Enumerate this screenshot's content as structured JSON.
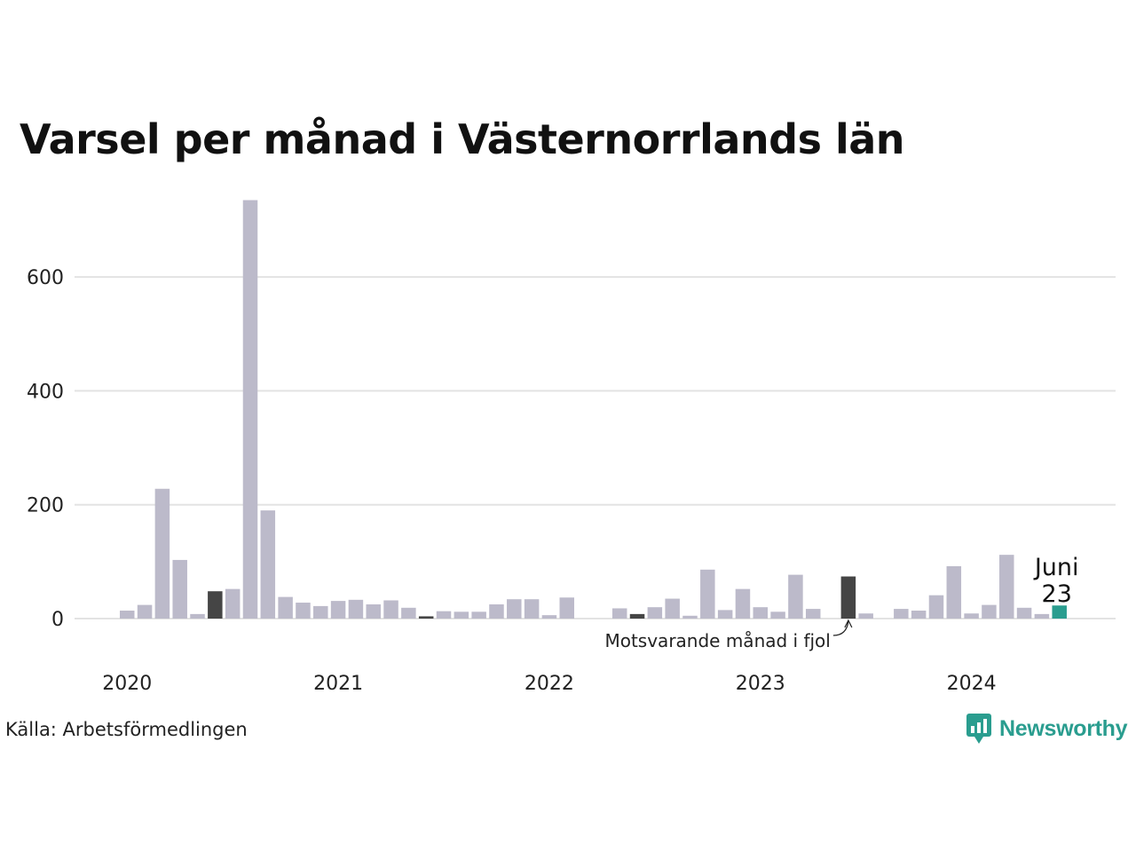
{
  "title": "Varsel per månad i Västernorrlands län",
  "source": "Källa: Arbetsförmedlingen",
  "brand": {
    "name": "Newsworthy",
    "icon": "newsworthy-logo-icon",
    "color": "#2a9d8f"
  },
  "chart_data": {
    "type": "bar",
    "ylim": [
      0,
      740
    ],
    "y_ticks": [
      0,
      200,
      400,
      600
    ],
    "x_tick_labels": [
      "2020",
      "2021",
      "2022",
      "2023",
      "2024"
    ],
    "grid": true,
    "colors": {
      "default": "#bcbaca",
      "same_month_previous_years": "#454545",
      "current": "#2a9d8f",
      "grid": "#e3e3e3"
    },
    "annotation": {
      "text": "Motsvarande månad i fjol",
      "points_to": "2023-06"
    },
    "current_label": {
      "month": "Juni",
      "value": "23"
    },
    "months": [
      "2020-01",
      "2020-02",
      "2020-03",
      "2020-04",
      "2020-05",
      "2020-06",
      "2020-07",
      "2020-08",
      "2020-09",
      "2020-10",
      "2020-11",
      "2020-12",
      "2021-01",
      "2021-02",
      "2021-03",
      "2021-04",
      "2021-05",
      "2021-06",
      "2021-07",
      "2021-08",
      "2021-09",
      "2021-10",
      "2021-11",
      "2021-12",
      "2022-01",
      "2022-02",
      "2022-03",
      "2022-04",
      "2022-05",
      "2022-06",
      "2022-07",
      "2022-08",
      "2022-09",
      "2022-10",
      "2022-11",
      "2022-12",
      "2023-01",
      "2023-02",
      "2023-03",
      "2023-04",
      "2023-05",
      "2023-06",
      "2023-07",
      "2023-08",
      "2023-09",
      "2023-10",
      "2023-11",
      "2023-12",
      "2024-01",
      "2024-02",
      "2024-03",
      "2024-04",
      "2024-05",
      "2024-06"
    ],
    "values": [
      14,
      24,
      228,
      103,
      8,
      48,
      52,
      735,
      190,
      38,
      28,
      22,
      31,
      33,
      25,
      32,
      19,
      4,
      13,
      12,
      12,
      25,
      34,
      34,
      6,
      37,
      0,
      0,
      18,
      8,
      20,
      35,
      5,
      86,
      15,
      52,
      20,
      12,
      77,
      17,
      0,
      74,
      9,
      0,
      17,
      14,
      41,
      92,
      9,
      24,
      112,
      19,
      8,
      23
    ],
    "highlight": {
      "same_month_previous_years": [
        "2020-06",
        "2021-06",
        "2022-06",
        "2023-06"
      ],
      "current": "2024-06"
    }
  }
}
